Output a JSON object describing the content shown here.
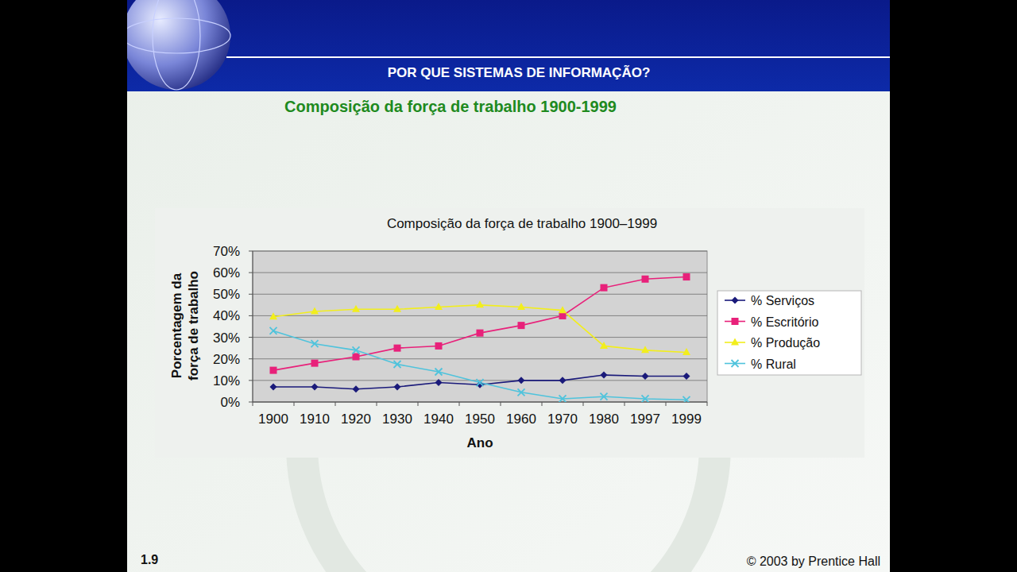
{
  "slide": {
    "header": "POR QUE SISTEMAS DE INFORMAÇÃO?",
    "title": "Composição da força de trabalho 1900-1999",
    "number": "1.9",
    "footer": "© 2003 by Prentice Hall"
  },
  "chart_data": {
    "type": "line",
    "title": "Composição da força de trabalho 1900–1999",
    "x_label": "Ano",
    "y_label": "Porcentagem da força de trabalho",
    "categories": [
      "1900",
      "1910",
      "1920",
      "1930",
      "1940",
      "1950",
      "1960",
      "1970",
      "1980",
      "1997",
      "1999"
    ],
    "series": [
      {
        "name": "% Serviços",
        "color": "#1a1a7a",
        "marker": "diamond",
        "values": [
          7,
          7,
          6,
          7,
          9,
          8,
          10,
          10,
          12.5,
          12,
          12
        ]
      },
      {
        "name": "% Escritório",
        "color": "#e8217a",
        "marker": "square",
        "values": [
          14.7,
          18,
          21,
          25,
          26,
          32,
          35.5,
          40,
          53,
          57,
          58
        ]
      },
      {
        "name": "% Produção",
        "color": "#f2ee1c",
        "marker": "triangle",
        "values": [
          39.5,
          42,
          43,
          43,
          44,
          45,
          44,
          42.5,
          26,
          24,
          23
        ]
      },
      {
        "name": "% Rural",
        "color": "#4fc3dc",
        "marker": "x",
        "values": [
          33,
          27,
          24,
          17.5,
          14,
          9,
          4.5,
          1.5,
          2.5,
          1.5,
          1
        ]
      }
    ],
    "ylim": [
      0,
      70
    ],
    "yticks": [
      {
        "value": 0,
        "label": "0%"
      },
      {
        "value": 10,
        "label": "10%"
      },
      {
        "value": 20,
        "label": "20%"
      },
      {
        "value": 30,
        "label": "30%"
      },
      {
        "value": 40,
        "label": "40%"
      },
      {
        "value": 50,
        "label": "50%"
      },
      {
        "value": 60,
        "label": "60%"
      },
      {
        "value": 70,
        "label": "70%"
      }
    ],
    "grid": true,
    "legend": "right"
  }
}
